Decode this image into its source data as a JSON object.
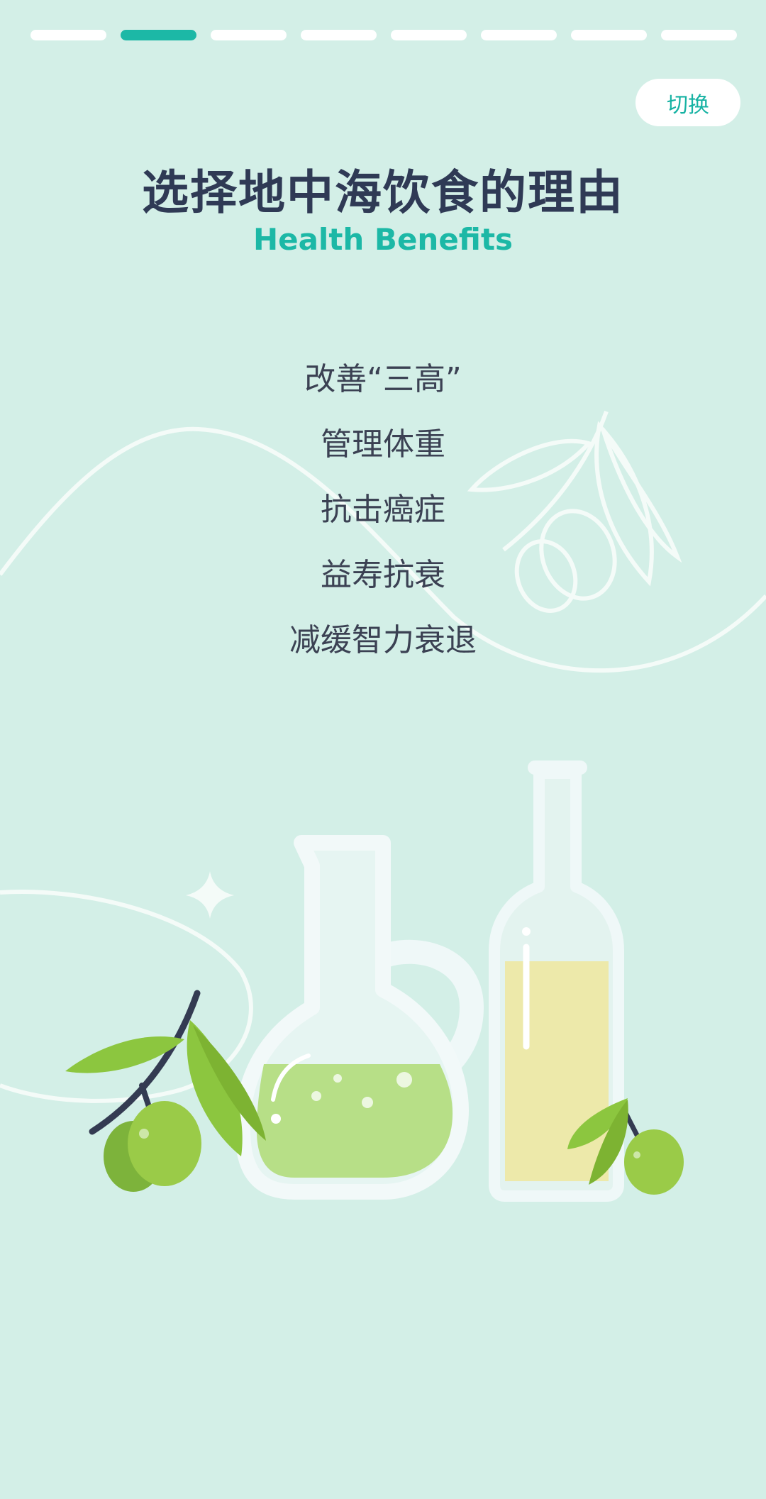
{
  "progress": {
    "total": 8,
    "current_index": 1
  },
  "header": {
    "switch_label": "切换",
    "title": "选择地中海饮食的理由",
    "subtitle": "Health Benefits"
  },
  "benefits": [
    "改善“三高”",
    "管理体重",
    "抗击癌症",
    "益寿抗衰",
    "减缓智力衰退"
  ],
  "colors": {
    "background": "#d3efe7",
    "accent": "#1cb8a6",
    "title": "#2f3a55",
    "olive_green": "#9acb48",
    "oil_yellow": "#ede9aa"
  },
  "icons": [
    "olive-branch-icon",
    "flask-icon",
    "oil-bottle-icon",
    "sparkle-icon"
  ]
}
